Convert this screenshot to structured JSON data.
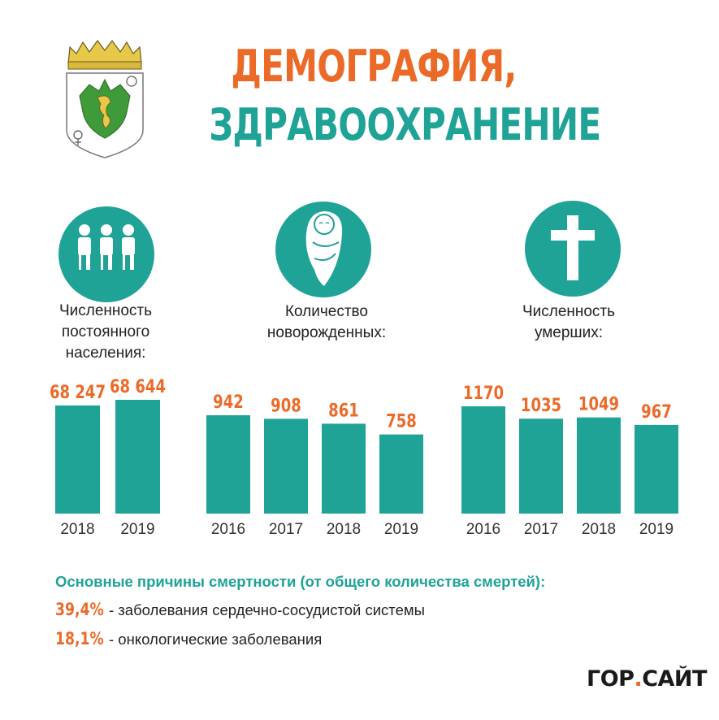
{
  "header": {
    "title_line1": "ДЕМОГРАФИЯ,",
    "title_line2": "ЗДРАВООХРАНЕНИЕ"
  },
  "icons": {
    "population": "people-icon",
    "newborns": "baby-icon",
    "deaths": "cross-icon",
    "emblem": "coat-of-arms-icon"
  },
  "colors": {
    "accent_orange": "#ec6a28",
    "accent_teal": "#1fa396"
  },
  "sections": {
    "population": {
      "label_line1": "Численность",
      "label_line2": "постоянного",
      "label_line3": "населения:"
    },
    "newborns": {
      "label_line1": "Количество",
      "label_line2": "новорожденных:"
    },
    "deaths": {
      "label_line1": "Численность",
      "label_line2": "умерших:"
    }
  },
  "chart_data": [
    {
      "type": "bar",
      "categories": [
        "2018",
        "2019"
      ],
      "values": [
        68247,
        68644
      ],
      "value_labels": [
        "68 247",
        "68 644"
      ],
      "title": "Численность постоянного населения:"
    },
    {
      "type": "bar",
      "categories": [
        "2016",
        "2017",
        "2018",
        "2019"
      ],
      "values": [
        942,
        908,
        861,
        758
      ],
      "value_labels": [
        "942",
        "908",
        "861",
        "758"
      ],
      "title": "Количество новорожденных:"
    },
    {
      "type": "bar",
      "categories": [
        "2016",
        "2017",
        "2018",
        "2019"
      ],
      "values": [
        1170,
        1035,
        1049,
        967
      ],
      "value_labels": [
        "1170",
        "1035",
        "1049",
        "967"
      ],
      "title": "Численность умерших:"
    }
  ],
  "causes": {
    "title": "Основные причины смертности (от общего количества смертей):",
    "items": [
      {
        "percent": "39,4%",
        "text": " - заболевания сердечно-сосудистой системы"
      },
      {
        "percent": "18,1%",
        "text": " - онкологические заболевания"
      }
    ]
  },
  "logo": {
    "part1": "ГОР",
    "dot": ".",
    "part2": "САЙТ"
  }
}
